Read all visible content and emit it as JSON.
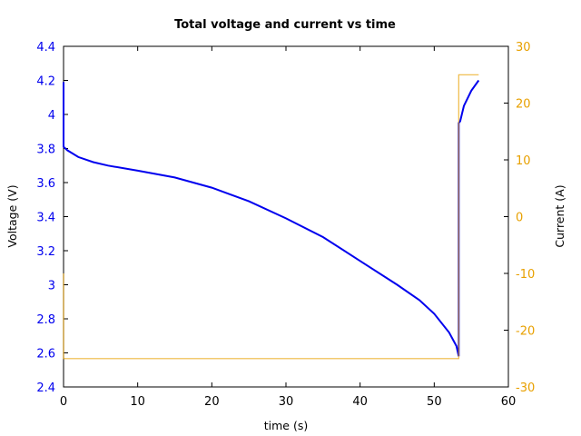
{
  "chart_data": {
    "type": "line",
    "title": "Total voltage and current vs time",
    "xlabel": "time (s)",
    "ylabel": "Voltage (V)",
    "y2label": "Current (A)",
    "xlim": [
      0,
      60
    ],
    "ylim": [
      2.4,
      4.4
    ],
    "y2lim": [
      -30,
      30
    ],
    "x_ticks": [
      "0",
      "10",
      "20",
      "30",
      "40",
      "50",
      "60"
    ],
    "y_ticks": [
      "4.4",
      "4.2",
      "4",
      "3.8",
      "3.6",
      "3.4",
      "3.2",
      "3",
      "2.8",
      "2.6",
      "2.4"
    ],
    "y2_ticks": [
      "30",
      "20",
      "10",
      "0",
      "-10",
      "-20",
      "-30"
    ],
    "grid": false,
    "colors": {
      "voltage": "#0000ee",
      "current": "#e8a000",
      "axis_left": "#0000ee",
      "axis_right": "#e8a000"
    },
    "series": [
      {
        "name": "Voltage",
        "axis": "left",
        "x": [
          0,
          0,
          0.5,
          2,
          4,
          6,
          10,
          15,
          20,
          25,
          30,
          35,
          40,
          45,
          48,
          50,
          52,
          53,
          53.3,
          53.3,
          53.5,
          54,
          55,
          56
        ],
        "values": [
          4.19,
          3.81,
          3.79,
          3.75,
          3.72,
          3.7,
          3.67,
          3.63,
          3.57,
          3.49,
          3.39,
          3.28,
          3.14,
          3.0,
          2.91,
          2.83,
          2.72,
          2.64,
          2.58,
          3.95,
          3.96,
          4.05,
          4.14,
          4.2
        ]
      },
      {
        "name": "Current",
        "axis": "right",
        "x": [
          0,
          0,
          53.3,
          53.3,
          56
        ],
        "values": [
          -10,
          -25,
          -25,
          25,
          25
        ]
      }
    ]
  }
}
